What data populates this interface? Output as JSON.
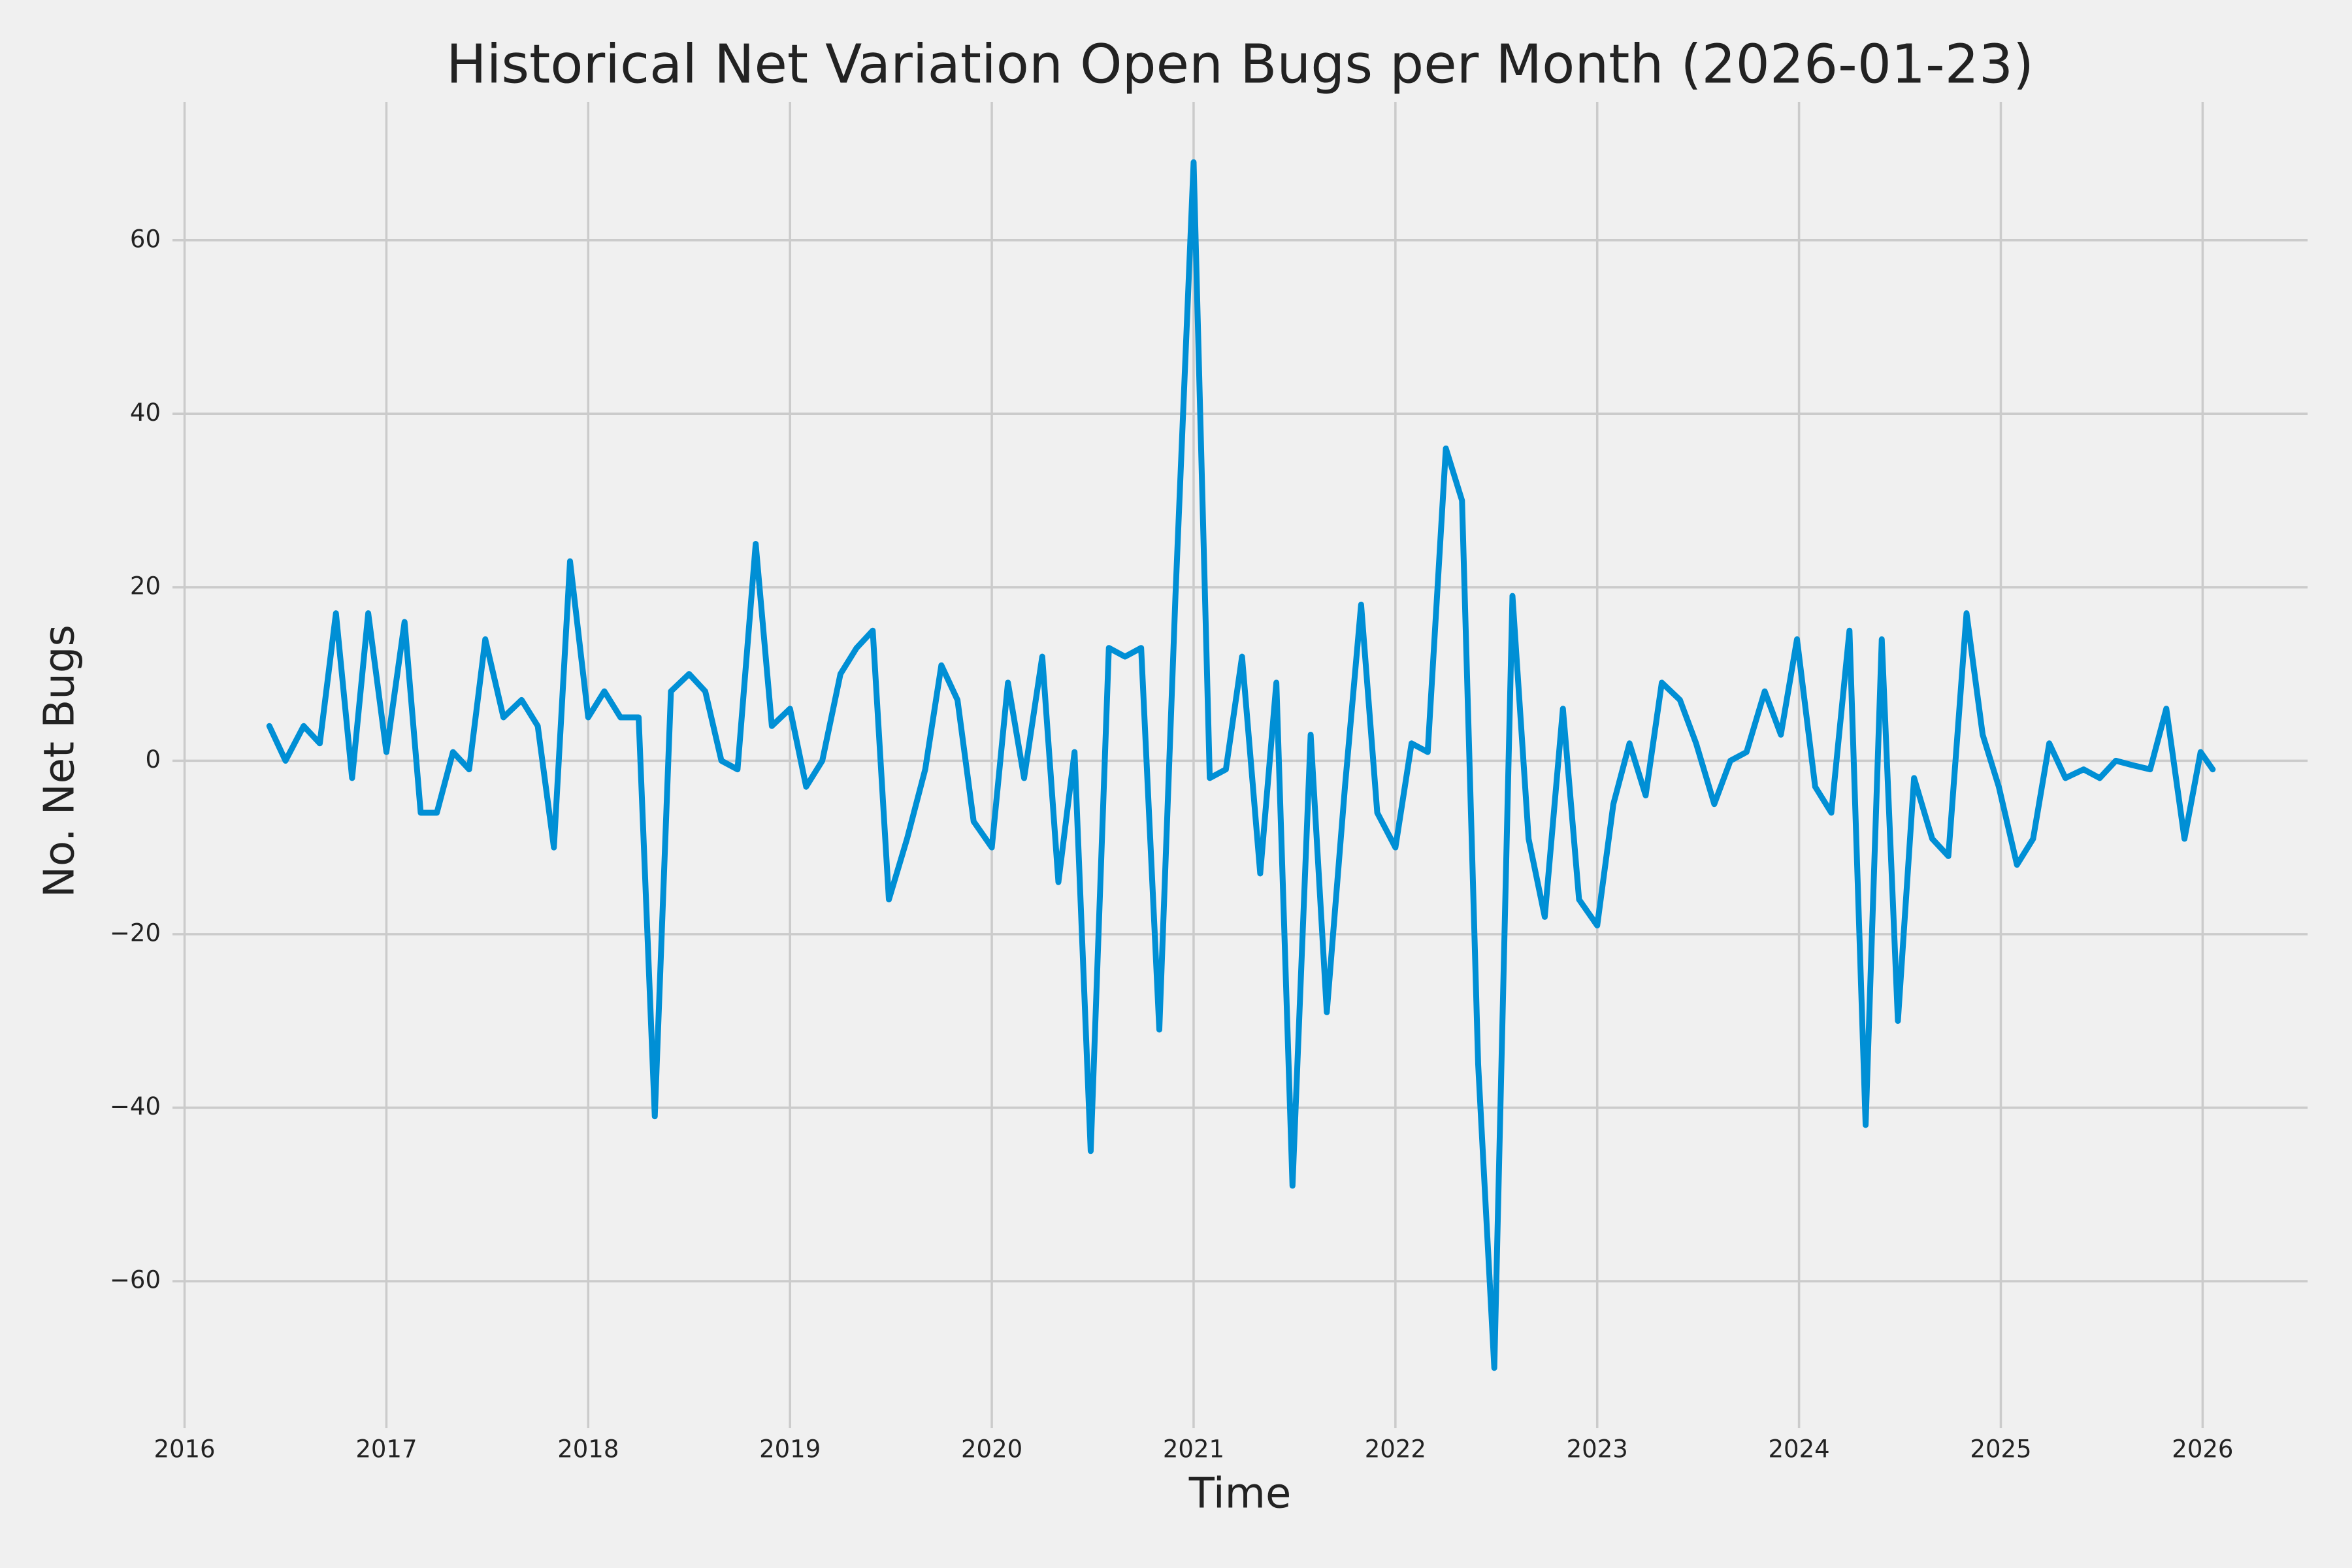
{
  "chart_data": {
    "type": "line",
    "title": "Historical Net Variation Open Bugs per Month (2026-01-23)",
    "x_label": "Time",
    "y_label": "No. Net Bugs",
    "x": [
      2016.42,
      2016.5,
      2016.59,
      2016.67,
      2016.75,
      2016.83,
      2016.91,
      2017.0,
      2017.09,
      2017.17,
      2017.25,
      2017.33,
      2017.41,
      2017.49,
      2017.58,
      2017.67,
      2017.75,
      2017.83,
      2017.91,
      2018.0,
      2018.08,
      2018.16,
      2018.25,
      2018.33,
      2018.41,
      2018.5,
      2018.58,
      2018.66,
      2018.74,
      2018.83,
      2018.91,
      2019.0,
      2019.08,
      2019.16,
      2019.25,
      2019.33,
      2019.41,
      2019.49,
      2019.58,
      2019.67,
      2019.75,
      2019.83,
      2019.91,
      2020.0,
      2020.08,
      2020.16,
      2020.25,
      2020.33,
      2020.41,
      2020.49,
      2020.58,
      2020.66,
      2020.74,
      2020.83,
      2020.91,
      2021.0,
      2021.08,
      2021.16,
      2021.24,
      2021.33,
      2021.41,
      2021.49,
      2021.58,
      2021.66,
      2021.75,
      2021.83,
      2021.91,
      2022.0,
      2022.08,
      2022.16,
      2022.25,
      2022.33,
      2022.41,
      2022.49,
      2022.58,
      2022.66,
      2022.74,
      2022.83,
      2022.91,
      2023.0,
      2023.08,
      2023.16,
      2023.24,
      2023.32,
      2023.41,
      2023.49,
      2023.58,
      2023.66,
      2023.74,
      2023.83,
      2023.91,
      2023.99,
      2024.08,
      2024.16,
      2024.25,
      2024.33,
      2024.41,
      2024.49,
      2024.57,
      2024.66,
      2024.74,
      2024.83,
      2024.91,
      2024.99,
      2025.08,
      2025.16,
      2025.24,
      2025.32,
      2025.41,
      2025.49,
      2025.57,
      2025.65,
      2025.74,
      2025.82,
      2025.91,
      2025.99,
      2026.05
    ],
    "series": [
      {
        "name": "Net bugs",
        "color": "#008fd5",
        "values": [
          4,
          0,
          4,
          2,
          17,
          -2,
          17,
          1,
          16,
          -6,
          -6,
          1,
          -1,
          14,
          5,
          7,
          4,
          -10,
          23,
          5,
          8,
          5,
          5,
          -41,
          8,
          10,
          8,
          0,
          -1,
          25,
          4,
          6,
          -3,
          0,
          10,
          13,
          15,
          -16,
          -9,
          -1,
          11,
          7,
          -7,
          -10,
          9,
          -2,
          12,
          -14,
          1,
          -45,
          13,
          12,
          13,
          -31,
          19,
          69,
          -2,
          -1,
          12,
          -13,
          9,
          -49,
          3,
          -29,
          -3,
          18,
          -6,
          -10,
          2,
          1,
          36,
          30,
          -35,
          -70,
          19,
          -9,
          -18,
          6,
          -16,
          -19,
          -5,
          2,
          -4,
          9,
          7,
          2,
          -5,
          0,
          1,
          8,
          3,
          14,
          -3,
          -6,
          15,
          -42,
          14,
          -30,
          -2,
          -9,
          -11,
          17,
          3,
          -3,
          -12,
          -9,
          2,
          -2,
          -1,
          -2,
          0,
          -0.5,
          -1,
          6,
          -9,
          1,
          -1
        ]
      }
    ],
    "xlim": [
      2015.94,
      2026.52
    ],
    "xticks": [
      2016,
      2017,
      2018,
      2019,
      2020,
      2021,
      2022,
      2023,
      2024,
      2025,
      2026
    ],
    "ylim": [
      -76.95,
      75.95
    ],
    "yticks": [
      {
        "value": -60,
        "label": "−60"
      },
      {
        "value": -40,
        "label": "−40"
      },
      {
        "value": -20,
        "label": "−20"
      },
      0,
      20,
      40,
      60
    ],
    "grid": true
  }
}
